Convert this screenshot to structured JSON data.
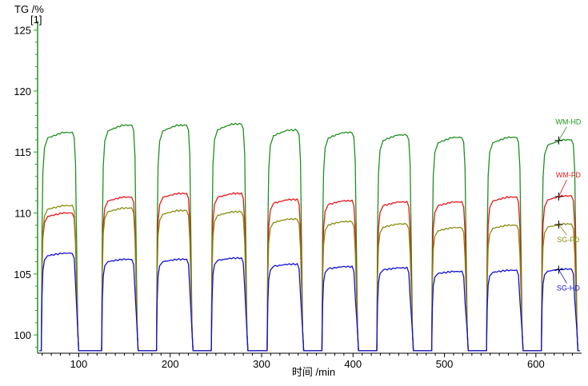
{
  "chart_data": {
    "type": "line",
    "ylabel": "TG /%",
    "ylabel_index": "[1]",
    "xlabel": "时间 /min",
    "xlim": [
      55,
      650
    ],
    "ylim": [
      98.5,
      125.5
    ],
    "x_ticks": [
      100,
      200,
      300,
      400,
      500,
      600
    ],
    "y_ticks": [
      100,
      105,
      110,
      115,
      120,
      125
    ],
    "axis_colors": {
      "y": "#2e9a2e",
      "x": "#000000"
    },
    "cycles": [
      {
        "up": 59,
        "down": 100,
        "plateau_end": 93
      },
      {
        "up": 125,
        "down": 165,
        "plateau_end": 158
      },
      {
        "up": 185,
        "down": 225,
        "plateau_end": 218
      },
      {
        "up": 245,
        "down": 285,
        "plateau_end": 278
      },
      {
        "up": 306,
        "down": 346,
        "plateau_end": 339
      },
      {
        "up": 366,
        "down": 406,
        "plateau_end": 399
      },
      {
        "up": 426,
        "down": 466,
        "plateau_end": 459
      },
      {
        "up": 486,
        "down": 526,
        "plateau_end": 519
      },
      {
        "up": 546,
        "down": 586,
        "plateau_end": 579
      },
      {
        "up": 606,
        "down": 646,
        "plateau_end": 639
      }
    ],
    "series": [
      {
        "name": "WM-HD",
        "color": "#1f8f1f",
        "baseline": 98.7,
        "peaks": [
          116.6,
          117.2,
          117.2,
          117.3,
          116.8,
          116.6,
          116.4,
          116.2,
          116.2,
          116.0
        ],
        "marker_x": 625,
        "label_position": "above-right"
      },
      {
        "name": "WM-FD",
        "color": "#e8161b",
        "baseline": 98.7,
        "peaks": [
          110.0,
          111.3,
          111.6,
          111.6,
          111.1,
          111.0,
          110.9,
          110.9,
          111.3,
          111.4
        ],
        "marker_x": 625,
        "label_position": "right"
      },
      {
        "name": "SG-FD",
        "color": "#8a8a10",
        "baseline": 98.7,
        "peaks": [
          110.6,
          110.4,
          110.2,
          110.1,
          109.5,
          109.3,
          109.1,
          108.8,
          109.0,
          109.1
        ],
        "marker_x": 625,
        "label_position": "right"
      },
      {
        "name": "SG-HD",
        "color": "#1010d8",
        "baseline": 98.7,
        "peaks": [
          106.7,
          106.2,
          106.2,
          106.3,
          105.8,
          105.6,
          105.5,
          105.2,
          105.3,
          105.4
        ],
        "marker_x": 625,
        "label_position": "right"
      }
    ],
    "grid": false,
    "legend": "inline labels at right"
  }
}
